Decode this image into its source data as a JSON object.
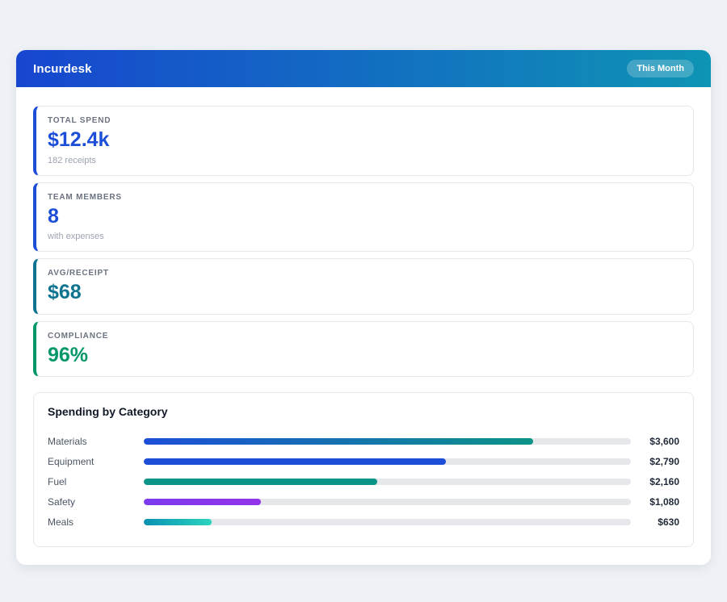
{
  "header": {
    "title": "Incurdesk",
    "period_badge": "This Month",
    "gradient_from": "#1746cf",
    "gradient_to": "#0e94b4"
  },
  "stats": [
    {
      "label": "TOTAL SPEND",
      "value": "$12.4k",
      "sub": "182 receipts",
      "accent": "#1d4ed8",
      "value_color": "#1d4ed8"
    },
    {
      "label": "TEAM MEMBERS",
      "value": "8",
      "sub": "with expenses",
      "accent": "#1d4ed8",
      "value_color": "#1d4ed8"
    },
    {
      "label": "AVG/RECEIPT",
      "value": "$68",
      "sub": "",
      "accent": "#0e7490",
      "value_color": "#0e7490"
    },
    {
      "label": "COMPLIANCE",
      "value": "96%",
      "sub": "",
      "accent": "#059669",
      "value_color": "#059669"
    }
  ],
  "chart_data": {
    "type": "bar",
    "title": "Spending by Category",
    "max_scale": 4500,
    "categories": [
      "Materials",
      "Equipment",
      "Fuel",
      "Safety",
      "Meals"
    ],
    "values": [
      3600,
      2790,
      2160,
      1080,
      630
    ],
    "rows": [
      {
        "category": "Materials",
        "value": 3600,
        "amount": "$3,600",
        "color_from": "#1d4ed8",
        "color_to": "#0d9488"
      },
      {
        "category": "Equipment",
        "value": 2790,
        "amount": "$2,790",
        "color_from": "#1d4ed8",
        "color_to": "#1d4ed8"
      },
      {
        "category": "Fuel",
        "value": 2160,
        "amount": "$2,160",
        "color_from": "#0d9488",
        "color_to": "#0d9488"
      },
      {
        "category": "Safety",
        "value": 1080,
        "amount": "$1,080",
        "color_from": "#7c3aed",
        "color_to": "#9333ea"
      },
      {
        "category": "Meals",
        "value": 630,
        "amount": "$630",
        "color_from": "#0891b2",
        "color_to": "#2dd4bf"
      }
    ]
  }
}
